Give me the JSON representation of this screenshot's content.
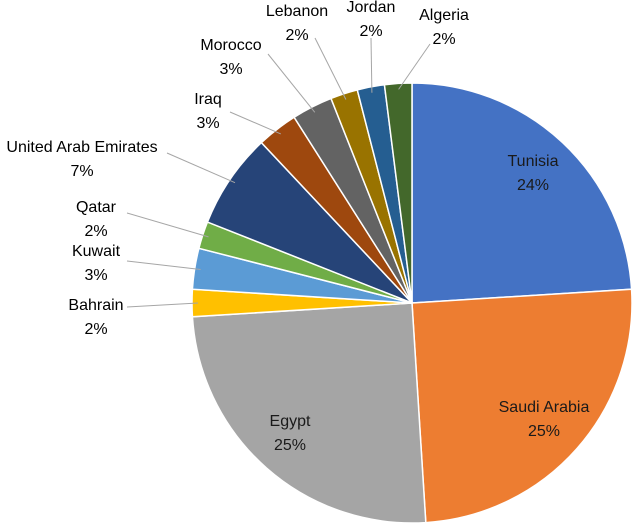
{
  "chart_data": {
    "type": "pie",
    "title": "",
    "slices": [
      {
        "label": "Tunisia",
        "percent_label": "24%",
        "value": 24,
        "color": "#4472C4"
      },
      {
        "label": "Saudi Arabia",
        "percent_label": "25%",
        "value": 25,
        "color": "#ED7D31"
      },
      {
        "label": "Egypt",
        "percent_label": "25%",
        "value": 25,
        "color": "#A5A5A5"
      },
      {
        "label": "Bahrain",
        "percent_label": "2%",
        "value": 2,
        "color": "#FFC000"
      },
      {
        "label": "Kuwait",
        "percent_label": "3%",
        "value": 3,
        "color": "#5B9BD5"
      },
      {
        "label": "Qatar",
        "percent_label": "2%",
        "value": 2,
        "color": "#70AD47"
      },
      {
        "label": "United Arab Emirates",
        "percent_label": "7%",
        "value": 7,
        "color": "#264478"
      },
      {
        "label": "Iraq",
        "percent_label": "3%",
        "value": 3,
        "color": "#9E480E"
      },
      {
        "label": "Morocco",
        "percent_label": "3%",
        "value": 3,
        "color": "#636363"
      },
      {
        "label": "Lebanon",
        "percent_label": "2%",
        "value": 2,
        "color": "#997300"
      },
      {
        "label": "Jordan",
        "percent_label": "2%",
        "value": 2,
        "color": "#255E91"
      },
      {
        "label": "Algeria",
        "percent_label": "2%",
        "value": 2,
        "color": "#43682B"
      }
    ]
  }
}
